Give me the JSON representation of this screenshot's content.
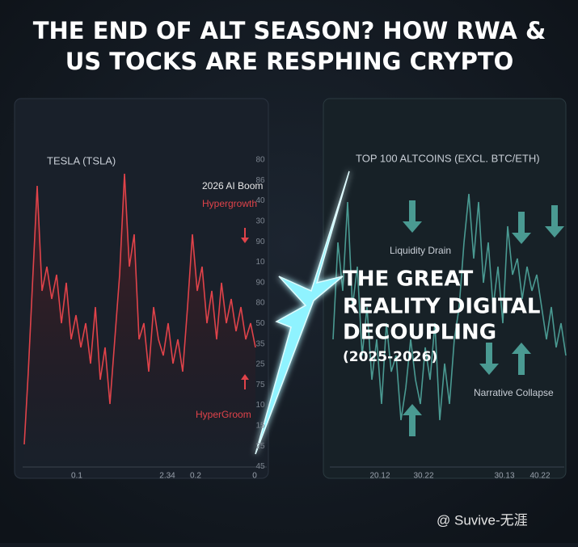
{
  "header": {
    "title_lines": [
      "THE END OF ALT SEASON? HOW RWA &",
      "US TOCKS ARE RESPHING CRYPTO"
    ]
  },
  "left_panel": {
    "title": "TESLA (TSLA)",
    "annotation_top": "2026 AI Boom",
    "annotation_mid": "Hypergrowth",
    "annotation_bottom": "HyperGroom",
    "axis_labels": [
      "80",
      "86",
      "40",
      "30",
      "90",
      "10",
      "90",
      "80",
      "50",
      "35",
      "25",
      "75",
      "10",
      "15",
      "25",
      "45"
    ],
    "x_labels": [
      "0.1",
      "2.34",
      "0.2",
      "0"
    ]
  },
  "right_panel": {
    "title": "TOP 100 ALTCOINS (EXCL. BTC/ETH)",
    "annotation_top": "Liquidity Drain",
    "annotation_bottom": "Narrative Collapse",
    "x_labels": [
      "20.12",
      "30.22",
      "30.13",
      "40.22"
    ]
  },
  "center": {
    "lines": [
      "THE GREAT",
      "REALITY DIGITAL",
      "DECOUPLING"
    ],
    "subtitle": "(2025-2026)"
  },
  "watermark": "@ Suvive-无涯"
}
